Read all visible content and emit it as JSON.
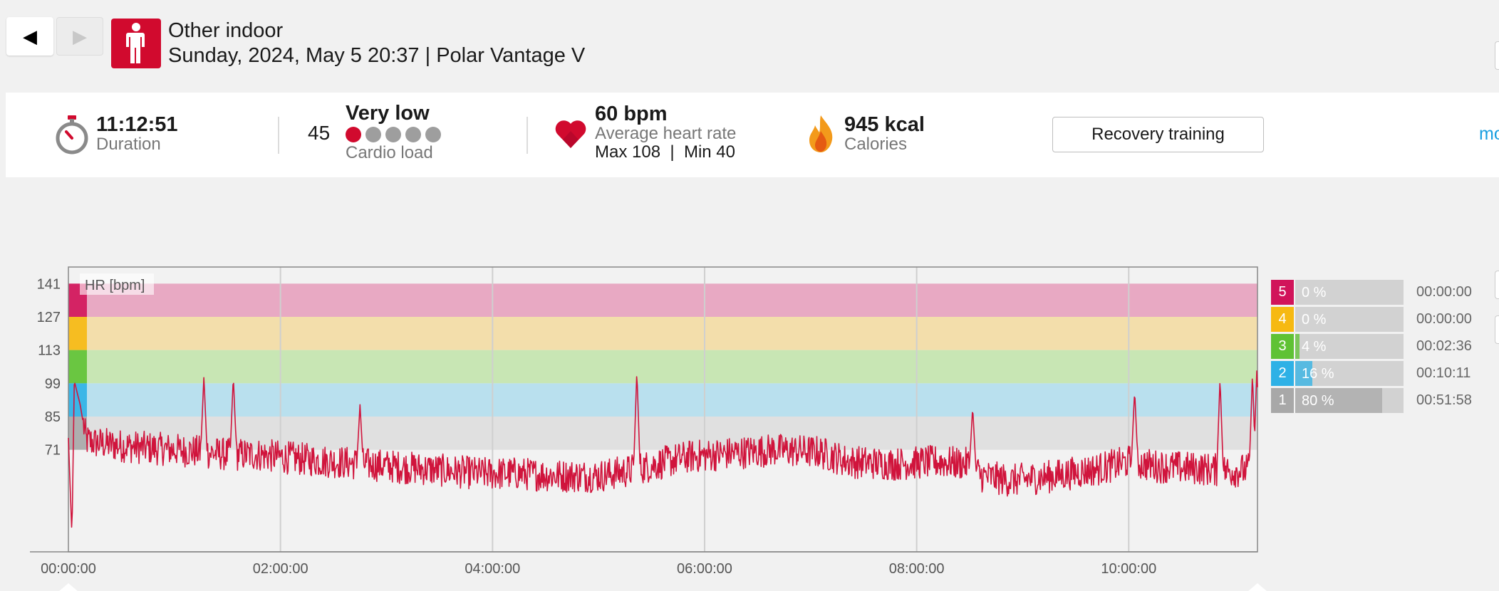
{
  "nav": {
    "prev_label": "◀",
    "next_label": "▶"
  },
  "header": {
    "sport": "Other indoor",
    "subtitle": "Sunday, 2024, May 5 20:37 | Polar Vantage V",
    "sport_icon": "person-icon",
    "accent_color": "#d10a2e"
  },
  "summary": {
    "duration": {
      "value": "11:12:51",
      "label": "Duration",
      "icon": "stopwatch-icon"
    },
    "cardio_load": {
      "value": "45",
      "level": "Very low",
      "label": "Cardio load",
      "dots_total": 5,
      "dots_active": 1
    },
    "heart_rate": {
      "value": "60 bpm",
      "label": "Average heart rate",
      "max_min": "Max 108  |  Min 40",
      "icon": "heart-icon"
    },
    "calories": {
      "value": "945 kcal",
      "label": "Calories",
      "icon": "flame-icon"
    },
    "training_benefit": "Recovery training",
    "more_link": "mo"
  },
  "chart_data": {
    "type": "line",
    "series_label": "HR [bpm]",
    "y_ticks": [
      141,
      127,
      113,
      99,
      85,
      71
    ],
    "ylim": [
      28,
      148
    ],
    "x_ticks": [
      "00:00:00",
      "02:00:00",
      "04:00:00",
      "06:00:00",
      "08:00:00",
      "10:00:00"
    ],
    "xlim_seconds": [
      0,
      40371
    ],
    "line_color": "#d0143c",
    "zones": [
      {
        "zone": 5,
        "from": 127,
        "to": 141,
        "color": "#e8a9c3"
      },
      {
        "zone": 4,
        "from": 113,
        "to": 127,
        "color": "#f3deab"
      },
      {
        "zone": 3,
        "from": 99,
        "to": 113,
        "color": "#c8e6b4"
      },
      {
        "zone": 2,
        "from": 85,
        "to": 99,
        "color": "#b9e0ee"
      },
      {
        "zone": 1,
        "from": 71,
        "to": 85,
        "color": "#e0e0e0"
      }
    ],
    "profile": [
      [
        0,
        76
      ],
      [
        120,
        35
      ],
      [
        200,
        100
      ],
      [
        400,
        90
      ],
      [
        600,
        75
      ],
      [
        900,
        74
      ],
      [
        1500,
        73
      ],
      [
        2400,
        72
      ],
      [
        3600,
        71
      ],
      [
        4600,
        70
      ],
      [
        5400,
        69
      ],
      [
        6400,
        69
      ],
      [
        7200,
        68
      ],
      [
        8000,
        67
      ],
      [
        9000,
        66
      ],
      [
        10000,
        65
      ],
      [
        11000,
        64
      ],
      [
        12000,
        63
      ],
      [
        13000,
        62
      ],
      [
        14000,
        61
      ],
      [
        15200,
        61
      ],
      [
        16800,
        60
      ],
      [
        18000,
        60
      ],
      [
        19000,
        62
      ],
      [
        20000,
        65
      ],
      [
        21000,
        68
      ],
      [
        22000,
        69
      ],
      [
        23000,
        70
      ],
      [
        24000,
        71
      ],
      [
        25500,
        70
      ],
      [
        26500,
        66
      ],
      [
        28000,
        65
      ],
      [
        29500,
        66
      ],
      [
        30600,
        65
      ],
      [
        31000,
        60
      ],
      [
        32000,
        58
      ],
      [
        33500,
        60
      ],
      [
        35000,
        63
      ],
      [
        36000,
        66
      ],
      [
        37000,
        64
      ],
      [
        38500,
        63
      ],
      [
        39500,
        62
      ],
      [
        40371,
        63
      ]
    ],
    "spikes": [
      [
        4600,
        102
      ],
      [
        5600,
        102
      ],
      [
        9900,
        90
      ],
      [
        19300,
        104
      ],
      [
        30700,
        89
      ],
      [
        36200,
        96
      ],
      [
        39100,
        101
      ],
      [
        40200,
        103
      ],
      [
        40350,
        105
      ]
    ],
    "table": [
      {
        "zone": "5",
        "percent": "0 %",
        "fraction": 0.0,
        "time": "00:00:00",
        "color": "#d1145a"
      },
      {
        "zone": "4",
        "percent": "0 %",
        "fraction": 0.0,
        "time": "00:00:00",
        "color": "#f6b912"
      },
      {
        "zone": "3",
        "percent": "4 %",
        "fraction": 0.04,
        "time": "00:02:36",
        "color": "#5fc234"
      },
      {
        "zone": "2",
        "percent": "16 %",
        "fraction": 0.16,
        "time": "00:10:11",
        "color": "#2eb1e6"
      },
      {
        "zone": "1",
        "percent": "80 %",
        "fraction": 0.8,
        "time": "00:51:58",
        "color": "#a8a8a8"
      }
    ]
  }
}
